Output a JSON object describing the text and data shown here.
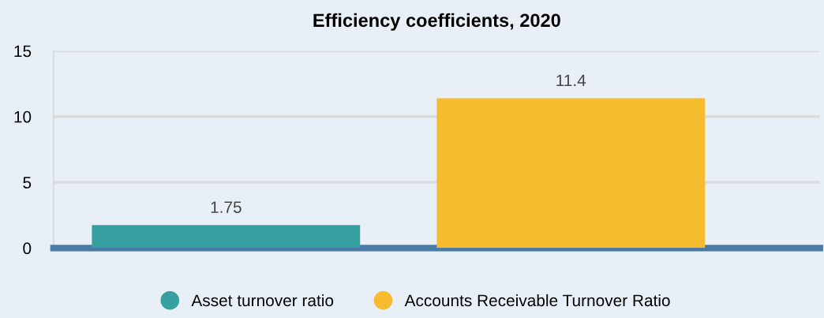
{
  "chart_data": {
    "type": "bar",
    "title": "Efficiency coefficients, 2020",
    "categories": [
      null
    ],
    "series": [
      {
        "name": "Asset turnover ratio",
        "color": "#35a09f",
        "values": [
          1.75
        ]
      },
      {
        "name": "Accounts Receivable Turnover Ratio",
        "color": "#f6bb2f",
        "values": [
          11.4
        ]
      }
    ],
    "ylim": [
      0,
      15
    ],
    "yticks": [
      0,
      5,
      10,
      15
    ],
    "grid": "y",
    "legend": "bottom",
    "data_labels": true
  }
}
